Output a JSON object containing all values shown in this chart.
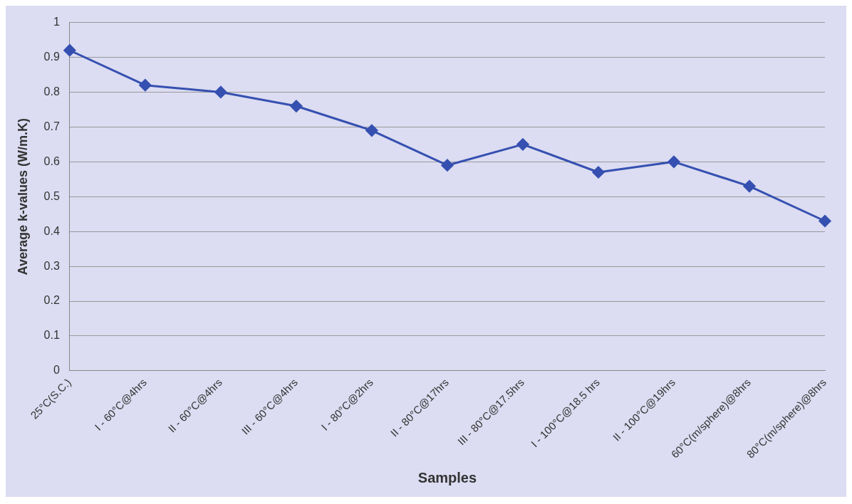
{
  "chart_data": {
    "type": "line",
    "xlabel": "Samples",
    "ylabel": "Average k-values (W/m.K)",
    "categories": [
      "25°C(S.C.)",
      "I - 60°C@4hrs",
      "II - 60°C@4hrs",
      "III - 60°C@4hrs",
      "I - 80°C@2hrs",
      "II - 80°C@17hrs",
      "III - 80°C@17.5hrs",
      "I - 100°C@18.5 hrs",
      "II - 100°C@19hrs",
      "60°C(m/sphere)@8hrs",
      "80°C(m/sphere)@8hrs"
    ],
    "series": [
      {
        "color": "#3550b0",
        "values": [
          0.92,
          0.82,
          0.8,
          0.76,
          0.69,
          0.59,
          0.65,
          0.57,
          0.6,
          0.53,
          0.43
        ]
      }
    ],
    "ylim": [
      0,
      1
    ],
    "yticks": [
      0,
      0.1,
      0.2,
      0.3,
      0.4,
      0.5,
      0.6,
      0.7,
      0.8,
      0.9,
      1
    ],
    "grid": "y",
    "legend": false,
    "marker": "diamond",
    "line_style": "solid"
  }
}
